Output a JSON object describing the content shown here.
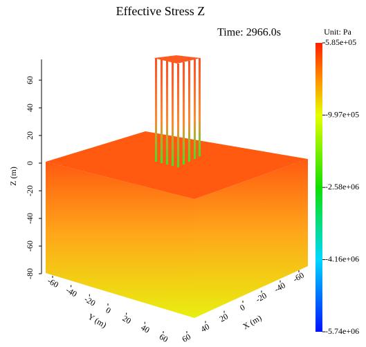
{
  "chart_data": {
    "type": "surface3d",
    "title": "Effective Stress Z",
    "annotation": "Time: 2966.0s",
    "xlabel": "X (m)",
    "ylabel": "Y (m)",
    "zlabel": "Z (m)",
    "xlim": [
      -60,
      60
    ],
    "xticks": [
      -60,
      -40,
      -20,
      0,
      20,
      40,
      60
    ],
    "ylim": [
      -60,
      60
    ],
    "yticks": [
      -60,
      -40,
      -20,
      0,
      20,
      40,
      60
    ],
    "zlim": [
      -80,
      75
    ],
    "zticks": [
      60,
      40,
      20,
      0,
      -20,
      -40,
      -60,
      -80
    ],
    "colorbar": {
      "label": "Unit: Pa",
      "lim": [
        -5740000,
        585000
      ],
      "ticks": [
        {
          "value": 585000,
          "label": "5.85e+05"
        },
        {
          "value": -997000,
          "label": "-9.97e+05"
        },
        {
          "value": -2580000,
          "label": "-2.58e+06"
        },
        {
          "value": -4160000,
          "label": "-4.16e+06"
        },
        {
          "value": -5740000,
          "label": "-5.74e+06"
        }
      ]
    }
  }
}
